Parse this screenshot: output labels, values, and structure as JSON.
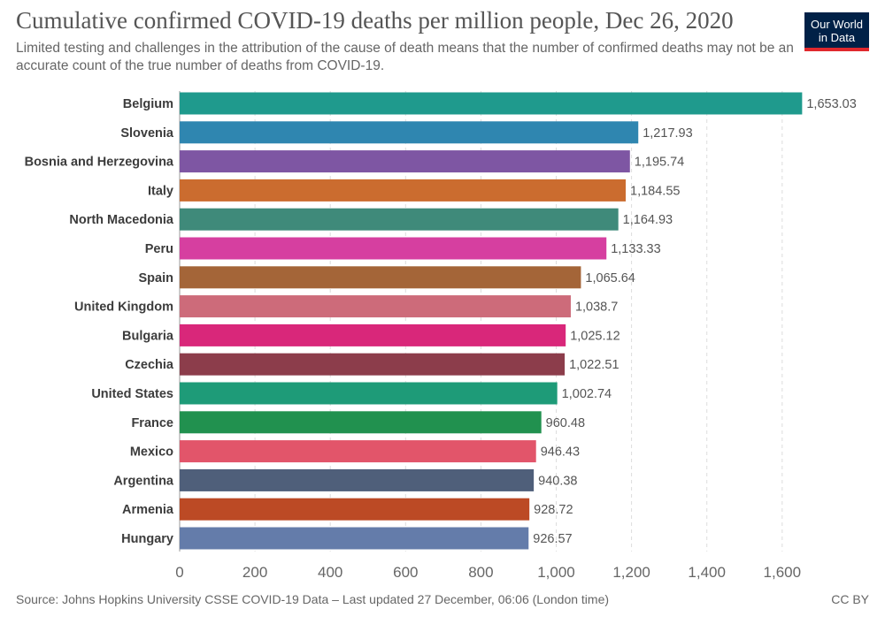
{
  "header": {
    "title": "Cumulative confirmed COVID-19 deaths per million people, Dec 26, 2020",
    "subtitle": "Limited testing and challenges in the attribution of the cause of death means that the number of confirmed deaths may not be an accurate count of the true number of deaths from COVID-19.",
    "logo_line1": "Our World",
    "logo_line2": "in Data"
  },
  "footer": {
    "source": "Source: Johns Hopkins University CSSE COVID-19 Data – Last updated 27 December, 06:06 (London time)",
    "license": "CC BY"
  },
  "chart_data": {
    "type": "bar",
    "orientation": "horizontal",
    "title": "Cumulative confirmed COVID-19 deaths per million people, Dec 26, 2020",
    "xlim": [
      0,
      1700
    ],
    "grid": true,
    "x_ticks": [
      0,
      200,
      400,
      600,
      800,
      1000,
      1200,
      1400,
      1600
    ],
    "x_tick_labels": [
      "0",
      "200",
      "400",
      "600",
      "800",
      "1,000",
      "1,200",
      "1,400",
      "1,600"
    ],
    "categories": [
      "Belgium",
      "Slovenia",
      "Bosnia and Herzegovina",
      "Italy",
      "North Macedonia",
      "Peru",
      "Spain",
      "United Kingdom",
      "Bulgaria",
      "Czechia",
      "United States",
      "France",
      "Mexico",
      "Argentina",
      "Armenia",
      "Hungary"
    ],
    "values": [
      1653.03,
      1217.93,
      1195.74,
      1184.55,
      1164.93,
      1133.33,
      1065.64,
      1038.7,
      1025.12,
      1022.51,
      1002.74,
      960.48,
      946.43,
      940.38,
      928.72,
      926.57
    ],
    "value_labels": [
      "1,653.03",
      "1,217.93",
      "1,195.74",
      "1,184.55",
      "1,164.93",
      "1,133.33",
      "1,065.64",
      "1,038.7",
      "1,025.12",
      "1,022.51",
      "1,002.74",
      "960.48",
      "946.43",
      "940.38",
      "928.72",
      "926.57"
    ],
    "colors": [
      "#1f9a8d",
      "#2f86b0",
      "#7e56a3",
      "#cb6c2f",
      "#3f8a7a",
      "#d63fa0",
      "#a46538",
      "#cd6b7a",
      "#d9277a",
      "#8c3d4b",
      "#1e9b78",
      "#21914f",
      "#e2556a",
      "#4f5f7a",
      "#bc4a25",
      "#647caa"
    ]
  }
}
